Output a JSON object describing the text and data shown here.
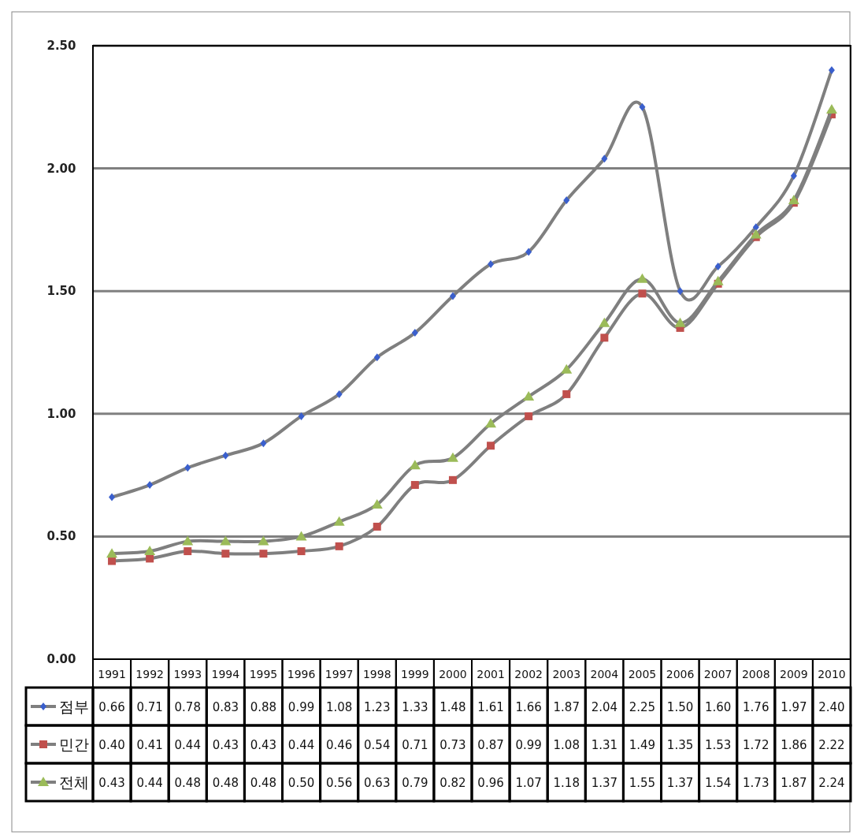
{
  "chart_data": {
    "type": "line",
    "categories": [
      "1991",
      "1992",
      "1993",
      "1994",
      "1995",
      "1996",
      "1997",
      "1998",
      "1999",
      "2000",
      "2001",
      "2002",
      "2003",
      "2004",
      "2005",
      "2006",
      "2007",
      "2008",
      "2009",
      "2010"
    ],
    "series": [
      {
        "name": "점부",
        "color": "#3a5fcd",
        "marker": "diamond",
        "values": [
          0.66,
          0.71,
          0.78,
          0.83,
          0.88,
          0.99,
          1.08,
          1.23,
          1.33,
          1.48,
          1.61,
          1.66,
          1.87,
          2.04,
          2.25,
          1.5,
          1.6,
          1.76,
          1.97,
          2.4
        ],
        "value_labels": [
          "0.66",
          "0.71",
          "0.78",
          "0.83",
          "0.88",
          "0.99",
          "1.08",
          "1.23",
          "1.33",
          "1.48",
          "1.61",
          "1.66",
          "1.87",
          "2.04",
          "2.25",
          "1.50",
          "1.60",
          "1.76",
          "1.97",
          "2.40"
        ]
      },
      {
        "name": "민간",
        "color": "#c0504d",
        "marker": "square",
        "values": [
          0.4,
          0.41,
          0.44,
          0.43,
          0.43,
          0.44,
          0.46,
          0.54,
          0.71,
          0.73,
          0.87,
          0.99,
          1.08,
          1.31,
          1.49,
          1.35,
          1.53,
          1.72,
          1.86,
          2.22
        ],
        "value_labels": [
          "0.40",
          "0.41",
          "0.44",
          "0.43",
          "0.43",
          "0.44",
          "0.46",
          "0.54",
          "0.71",
          "0.73",
          "0.87",
          "0.99",
          "1.08",
          "1.31",
          "1.49",
          "1.35",
          "1.53",
          "1.72",
          "1.86",
          "2.22"
        ]
      },
      {
        "name": "전체",
        "color": "#9bbb59",
        "marker": "triangle",
        "values": [
          0.43,
          0.44,
          0.48,
          0.48,
          0.48,
          0.5,
          0.56,
          0.63,
          0.79,
          0.82,
          0.96,
          1.07,
          1.18,
          1.37,
          1.55,
          1.37,
          1.54,
          1.73,
          1.87,
          2.24
        ],
        "value_labels": [
          "0.43",
          "0.44",
          "0.48",
          "0.48",
          "0.48",
          "0.50",
          "0.56",
          "0.63",
          "0.79",
          "0.82",
          "0.96",
          "1.07",
          "1.18",
          "1.37",
          "1.55",
          "1.37",
          "1.54",
          "1.73",
          "1.87",
          "2.24"
        ]
      }
    ],
    "ylim": [
      0,
      2.5
    ],
    "yticks": [
      {
        "value": 0,
        "label": "0.00"
      },
      {
        "value": 0.5,
        "label": "0.50"
      },
      {
        "value": 1,
        "label": "1.00"
      },
      {
        "value": 1.5,
        "label": "1.50"
      },
      {
        "value": 2,
        "label": "2.00"
      },
      {
        "value": 2.5,
        "label": "2.50"
      }
    ],
    "grid": "y",
    "legend": "bottom"
  }
}
